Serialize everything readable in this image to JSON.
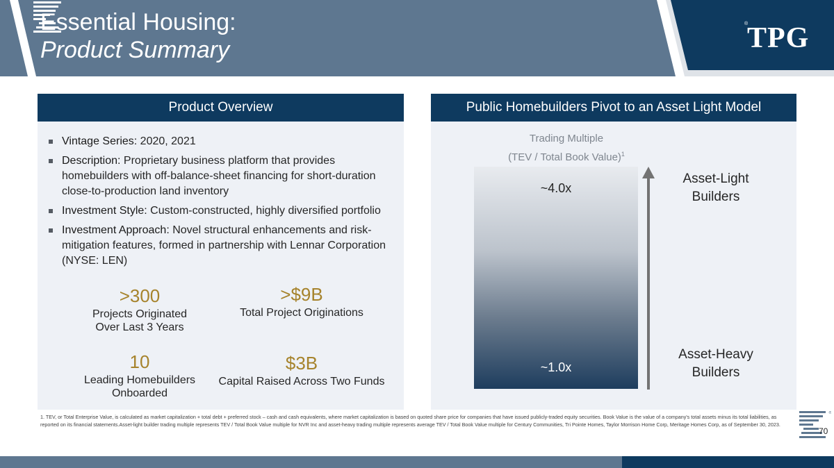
{
  "header": {
    "title_line1": "Essential Housing:",
    "title_line2": "Product Summary",
    "logo_text": "TPG",
    "logo_trademark": "®",
    "band_color": "#5e7790",
    "logo_color": "#0e3a5f"
  },
  "overview": {
    "heading": "Product Overview",
    "bullets": [
      {
        "key": "Vintage Series:",
        "text": " 2020, 2021"
      },
      {
        "key": "Description:",
        "text": " Proprietary business platform that provides homebuilders with off-balance-sheet financing for short-duration close-to-production land inventory"
      },
      {
        "key": "Investment Style:",
        "text": " Custom-constructed, highly diversified portfolio"
      },
      {
        "key": "Investment Approach:",
        "text": " Novel structural enhancements and risk-mitigation features, formed in partnership with Lennar Corporation (NYSE: LEN)"
      }
    ],
    "stats": [
      {
        "value": ">300",
        "label_line1": "Projects Originated",
        "label_line2": "Over Last 3 Years"
      },
      {
        "value": ">$9B",
        "label_line1": "Total Project Originations",
        "label_line2": ""
      },
      {
        "value": "10",
        "label_line1": "Leading Homebuilders",
        "label_line2": "Onboarded"
      },
      {
        "value": "$3B",
        "label_line1": "Capital Raised Across Two Funds",
        "label_line2": ""
      }
    ],
    "accent_color": "#a6832c"
  },
  "pivot": {
    "heading": "Public Homebuilders Pivot to an Asset Light Model",
    "metric_line1": "Trading Multiple",
    "metric_line2": "(TEV / Total Book Value)",
    "metric_footnote_ref": "1",
    "top_multiple": "~4.0x",
    "bottom_multiple": "~1.0x",
    "top_builder_line1": "Asset-Light",
    "top_builder_line2": "Builders",
    "bottom_builder_line1": "Asset-Heavy",
    "bottom_builder_line2": "Builders",
    "heading_color": "#0e3a5f"
  },
  "footnote": "1. TEV, or Total Enterprise Value, is calculated as market capitalization + total debt + preferred stock – cash and cash equivalents, where market capitalization is based on quoted share price for companies that have issued publicly-traded equity securities. Book Value is the value of a company's total assets minus its total liabilities, as reported on its financial statements.Asset-light builder trading multiple represents TEV / Total Book Value multiple for NVR Inc and asset-heavy trading multiple represents average TEV / Total Book Value multiple for Century Communities, Tri Pointe Homes, Taylor Morrison Home Corp, Meritage Homes Corp, as of September 30, 2023.",
  "page": {
    "number": "70"
  }
}
